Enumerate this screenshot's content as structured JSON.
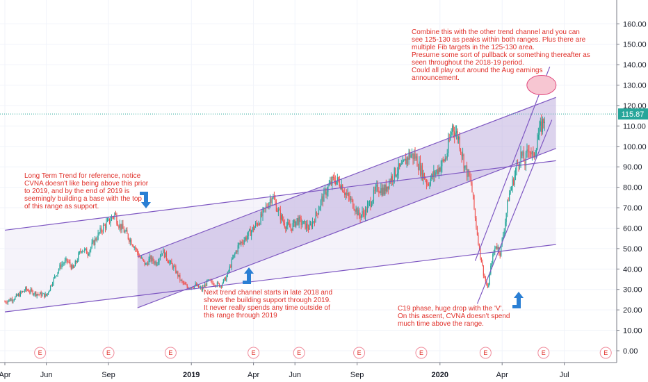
{
  "chart_data": {
    "type": "candlestick",
    "title": "",
    "xlabel": "",
    "ylabel": "",
    "ylim": [
      -7,
      172
    ],
    "x_ticks": [
      {
        "label": "Apr",
        "t": 0.0
      },
      {
        "label": "Jun",
        "t": 2.0
      },
      {
        "label": "Sep",
        "t": 5.0
      },
      {
        "label": "2019",
        "t": 9.0,
        "bold": true
      },
      {
        "label": "Apr",
        "t": 12.0
      },
      {
        "label": "Jun",
        "t": 14.0
      },
      {
        "label": "Sep",
        "t": 17.0
      },
      {
        "label": "2020",
        "t": 21.0,
        "bold": true
      },
      {
        "label": "Apr",
        "t": 24.0
      },
      {
        "label": "Jul",
        "t": 27.0
      }
    ],
    "y_ticks": [
      0,
      10,
      20,
      30,
      40,
      50,
      60,
      70,
      80,
      90,
      100,
      110,
      120,
      130,
      140,
      150,
      160
    ],
    "y_tick_labels": [
      "0.00",
      "10.00",
      "20.00",
      "30.00",
      "40.00",
      "50.00",
      "60.00",
      "70.00",
      "80.00",
      "90.00",
      "100.00",
      "110.00",
      "120.00",
      "130.00",
      "140.00",
      "150.00",
      "160.00"
    ],
    "last_price": 115.87,
    "last_price_label": "115.87",
    "price_path": [
      [
        0.0,
        24
      ],
      [
        0.5,
        26
      ],
      [
        1.0,
        30
      ],
      [
        1.5,
        28
      ],
      [
        2.0,
        27
      ],
      [
        2.3,
        34
      ],
      [
        2.7,
        42
      ],
      [
        3.0,
        44
      ],
      [
        3.3,
        40
      ],
      [
        3.7,
        50
      ],
      [
        4.0,
        48
      ],
      [
        4.4,
        55
      ],
      [
        4.7,
        60
      ],
      [
        5.0,
        63
      ],
      [
        5.3,
        67
      ],
      [
        5.5,
        62
      ],
      [
        5.8,
        58
      ],
      [
        6.2,
        52
      ],
      [
        6.5,
        46
      ],
      [
        6.8,
        42
      ],
      [
        7.0,
        45
      ],
      [
        7.3,
        43
      ],
      [
        7.6,
        49
      ],
      [
        7.9,
        44
      ],
      [
        8.2,
        40
      ],
      [
        8.5,
        34
      ],
      [
        8.8,
        31
      ],
      [
        9.2,
        32
      ],
      [
        9.5,
        30
      ],
      [
        9.8,
        34
      ],
      [
        10.1,
        33
      ],
      [
        10.4,
        32
      ],
      [
        10.7,
        36
      ],
      [
        11.0,
        45
      ],
      [
        11.3,
        52
      ],
      [
        11.6,
        55
      ],
      [
        12.0,
        60
      ],
      [
        12.3,
        64
      ],
      [
        12.6,
        70
      ],
      [
        12.9,
        76
      ],
      [
        13.2,
        68
      ],
      [
        13.5,
        62
      ],
      [
        13.8,
        60
      ],
      [
        14.1,
        64
      ],
      [
        14.4,
        62
      ],
      [
        14.7,
        60
      ],
      [
        15.0,
        66
      ],
      [
        15.3,
        74
      ],
      [
        15.6,
        80
      ],
      [
        15.9,
        84
      ],
      [
        16.2,
        82
      ],
      [
        16.5,
        76
      ],
      [
        16.8,
        72
      ],
      [
        17.1,
        66
      ],
      [
        17.4,
        68
      ],
      [
        17.7,
        74
      ],
      [
        18.0,
        80
      ],
      [
        18.3,
        78
      ],
      [
        18.6,
        84
      ],
      [
        18.9,
        88
      ],
      [
        19.2,
        90
      ],
      [
        19.5,
        96
      ],
      [
        19.8,
        95
      ],
      [
        20.1,
        88
      ],
      [
        20.4,
        82
      ],
      [
        20.7,
        86
      ],
      [
        21.0,
        90
      ],
      [
        21.3,
        95
      ],
      [
        21.6,
        110
      ],
      [
        21.9,
        104
      ],
      [
        22.2,
        90
      ],
      [
        22.5,
        82
      ],
      [
        22.7,
        65
      ],
      [
        22.9,
        50
      ],
      [
        23.1,
        38
      ],
      [
        23.3,
        30
      ],
      [
        23.5,
        44
      ],
      [
        23.7,
        52
      ],
      [
        23.9,
        48
      ],
      [
        24.1,
        60
      ],
      [
        24.3,
        75
      ],
      [
        24.5,
        82
      ],
      [
        24.7,
        90
      ],
      [
        24.9,
        96
      ],
      [
        25.1,
        92
      ],
      [
        25.3,
        100
      ],
      [
        25.5,
        94
      ],
      [
        25.7,
        104
      ],
      [
        25.9,
        110
      ],
      [
        26.1,
        115.87
      ]
    ],
    "lines": [
      {
        "name": "long-term-upper",
        "points": [
          [
            0.0,
            59
          ],
          [
            26.6,
            93
          ]
        ],
        "color": "#7e57c2"
      },
      {
        "name": "long-term-lower",
        "points": [
          [
            0.0,
            19
          ],
          [
            26.6,
            52
          ]
        ],
        "color": "#7e57c2"
      },
      {
        "name": "channel-2018-upper",
        "points": [
          [
            6.4,
            46
          ],
          [
            26.6,
            124
          ]
        ],
        "color": "#7e57c2"
      },
      {
        "name": "channel-2018-lower",
        "points": [
          [
            6.4,
            21
          ],
          [
            26.6,
            99
          ]
        ],
        "color": "#7e57c2"
      },
      {
        "name": "c19-upper",
        "points": [
          [
            22.7,
            44
          ],
          [
            26.3,
            139
          ]
        ],
        "color": "#7e57c2"
      },
      {
        "name": "c19-lower",
        "points": [
          [
            22.8,
            23
          ],
          [
            26.4,
            113
          ]
        ],
        "color": "#7e57c2"
      }
    ],
    "annotations": [
      {
        "id": "long-term",
        "lines": [
          "Long Term Trend for reference, notice",
          "CVNA doesn't like being above this prior",
          "to 2019, and by the end of 2019 is",
          "seemingly building a base with the top",
          "of this range as support."
        ]
      },
      {
        "id": "next-trend",
        "lines": [
          "Next trend channel starts in late 2018 and",
          "shows the building support through 2019.",
          "It never really spends any time outside of",
          "this range through 2019"
        ]
      },
      {
        "id": "c19",
        "lines": [
          "C19 phase, huge drop with the 'V'.",
          "On this ascent, CVNA doesn't spend",
          "much time above the range."
        ]
      },
      {
        "id": "combine",
        "lines": [
          "Combine this with the other trend channel and you can",
          "see 125-130 as peaks within both ranges. Plus there are",
          "multiple Fib targets in the 125-130 area.",
          "",
          "Presume some sort of pullback or something thereafter as",
          "seen throughout the 2018-19 period.",
          "",
          "Could all play out around the Aug earnings",
          "announcement."
        ]
      }
    ],
    "earnings_marker": "E",
    "earnings_t": [
      1.7,
      5.0,
      8.0,
      12.0,
      14.2,
      17.1,
      20.1,
      23.2,
      26.0,
      29.0
    ],
    "target_zone": {
      "t": 25.9,
      "y": 130
    },
    "colors": {
      "up": "#26a69a",
      "down": "#ef5350",
      "channel": "#7e57c2",
      "note": "#e0302a",
      "arrow": "#2a7fd4",
      "price_tag": "#26a69a"
    }
  }
}
